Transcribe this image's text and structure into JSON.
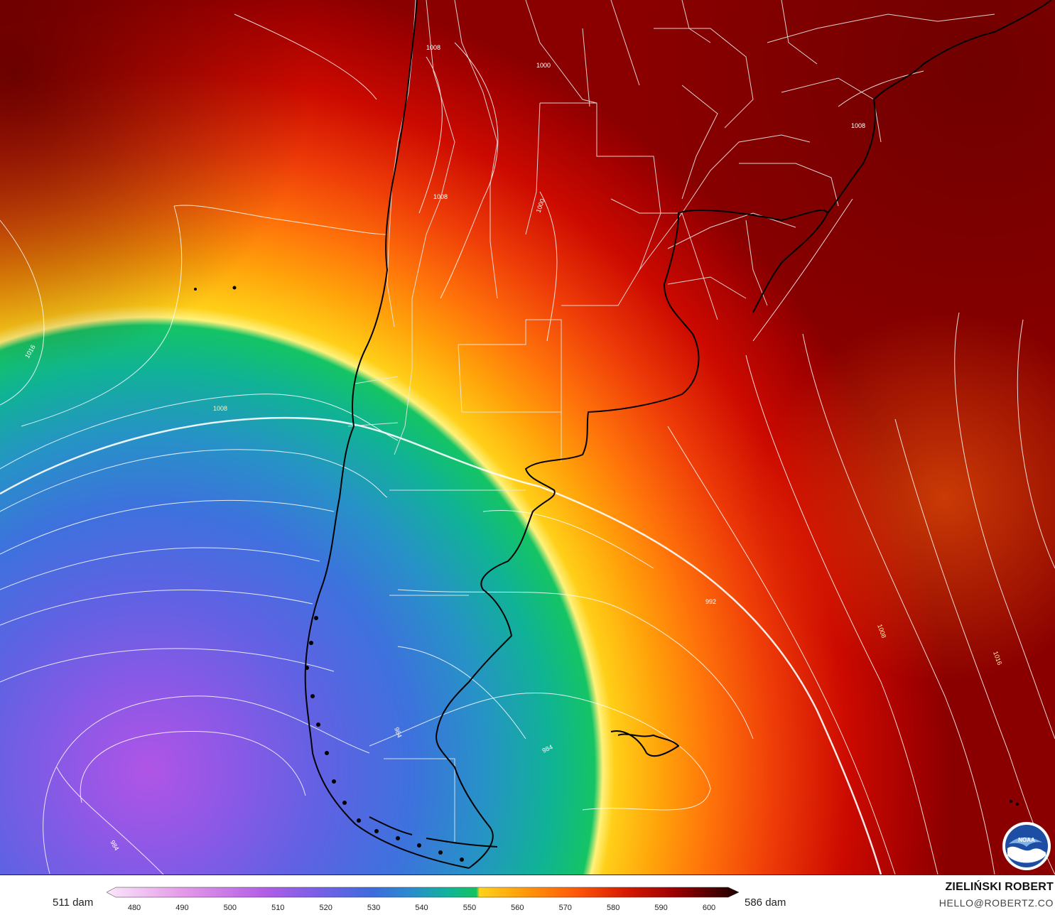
{
  "colorbar": {
    "min_label": "511 dam",
    "max_label": "586 dam",
    "ticks": [
      "480",
      "490",
      "500",
      "510",
      "520",
      "530",
      "540",
      "550",
      "560",
      "570",
      "580",
      "590",
      "600"
    ],
    "colors": [
      "#f7c8f7",
      "#e49ae8",
      "#c46be0",
      "#a55de4",
      "#6f5fe6",
      "#3f6cdd",
      "#2e89cf",
      "#12b39a",
      "#12c465",
      "#ffcd1a",
      "#ff9a0a",
      "#ff6a0a",
      "#e8300a",
      "#b80000",
      "#8a0000",
      "#3a0505"
    ]
  },
  "contour_labels": {
    "l1008_nw": "1008",
    "l1000_andes": "1000",
    "l1008_andes": "1008",
    "l1000_arg": "1000",
    "l1008_brazil": "1008",
    "l1016_west": "1016",
    "l1008_jet": "1008",
    "l992": "992",
    "l984_patag": "984",
    "l984_sea": "984",
    "l984_low": "984",
    "l1008_east": "1008",
    "l1016_east": "1016"
  },
  "logo": {
    "text": "NOAA"
  },
  "brand": {
    "name": "ZIELIŃSKI ROBERT",
    "email": "HELLO@ROBERTZ.CO"
  },
  "map_colors": {
    "outline": "#000000",
    "isobar": "#ffffff",
    "border": "#e8e8e8"
  }
}
